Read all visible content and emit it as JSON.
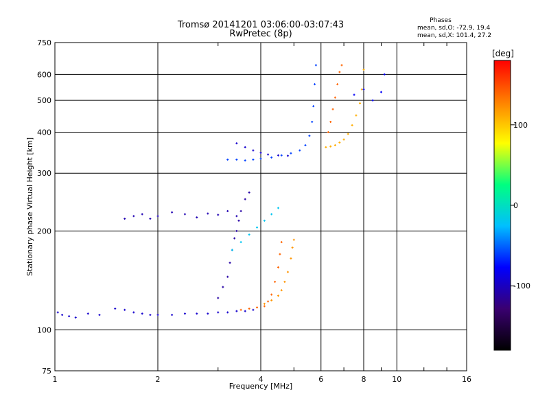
{
  "chart_data": {
    "type": "scatter",
    "title": "Tromsø 20141201 03:06:00-03:07:43",
    "subtitle": "RwPretec (8p)",
    "xlabel": "Frequency [MHz]",
    "ylabel": "Stationary phase Virtual Height [km]",
    "x_scale": "log",
    "y_scale": "log",
    "xlim": [
      1,
      16
    ],
    "ylim": [
      75,
      750
    ],
    "x_ticks": [
      1,
      2,
      4,
      6,
      8,
      10,
      16
    ],
    "x_tick_labels": [
      "1",
      "2",
      "4",
      "6",
      "8",
      "10",
      "16"
    ],
    "y_ticks": [
      75,
      100,
      200,
      300,
      400,
      500,
      600,
      750
    ],
    "y_tick_labels": [
      "75",
      "100",
      "200",
      "300",
      "400",
      "500",
      "600",
      "750"
    ],
    "grid": true,
    "colorbar": {
      "label": "[deg]",
      "range": [
        -180,
        180
      ],
      "ticks": [
        100,
        0,
        -100
      ],
      "tick_labels": [
        "100",
        "0",
        "-100"
      ],
      "colormap": [
        "#000000",
        "#3a0070",
        "#0000ff",
        "#00bfff",
        "#00ff80",
        "#ffff00",
        "#ff8000",
        "#ff0000"
      ]
    },
    "phases_box": {
      "heading": "Phases",
      "line1": "mean, sd,O: -72.9, 19.4",
      "line2": "mean, sd,X: 101.4, 27.2"
    },
    "traces": [
      {
        "x": [
          1.02,
          1.05,
          1.1,
          1.15,
          1.25,
          1.35,
          1.5,
          1.6,
          1.7,
          1.8,
          1.9,
          2.0,
          2.2,
          2.4,
          2.6,
          2.8,
          3.0,
          3.2,
          3.4,
          3.6,
          3.8
        ],
        "y": [
          113,
          111,
          110,
          109,
          112,
          111,
          116,
          115,
          113,
          112,
          111,
          111,
          111,
          112,
          112,
          112,
          113,
          113,
          114,
          114,
          115
        ],
        "phase": -95
      },
      {
        "x": [
          3.0,
          3.1,
          3.2,
          3.25,
          3.3,
          3.35,
          3.4,
          3.45,
          3.5,
          3.6,
          3.7
        ],
        "y": [
          125,
          135,
          145,
          160,
          175,
          190,
          200,
          215,
          230,
          250,
          262
        ],
        "phase": -110
      },
      {
        "x": [
          1.6,
          1.7,
          1.8,
          1.9,
          2.0,
          2.2,
          2.4,
          2.6,
          2.8,
          3.0,
          3.2,
          3.4
        ],
        "y": [
          218,
          222,
          225,
          218,
          222,
          228,
          225,
          220,
          226,
          224,
          230,
          222
        ],
        "phase": -105
      },
      {
        "x": [
          3.5,
          3.7,
          3.9,
          4.1,
          4.2,
          4.3,
          4.4,
          4.5,
          4.55,
          4.6
        ],
        "y": [
          115,
          116,
          117,
          118,
          122,
          128,
          140,
          155,
          170,
          185
        ],
        "phase": 140
      },
      {
        "x": [
          4.1,
          4.3,
          4.5,
          4.6,
          4.7,
          4.8,
          4.9,
          4.95,
          5.0
        ],
        "y": [
          120,
          123,
          127,
          132,
          140,
          150,
          165,
          178,
          188
        ],
        "phase": 120
      },
      {
        "x": [
          3.3,
          3.5,
          3.7,
          3.9,
          4.1,
          4.3,
          4.5
        ],
        "y": [
          175,
          185,
          195,
          205,
          215,
          225,
          235
        ],
        "phase": -20
      },
      {
        "x": [
          3.2,
          3.4,
          3.6,
          3.8,
          4.0,
          4.3,
          4.6,
          4.9,
          5.2,
          5.4,
          5.55,
          5.65,
          5.7,
          5.75,
          5.8
        ],
        "y": [
          330,
          330,
          328,
          330,
          332,
          335,
          340,
          345,
          352,
          365,
          390,
          430,
          480,
          560,
          640
        ],
        "phase": -60
      },
      {
        "x": [
          3.4,
          3.6,
          3.8,
          4.0,
          4.2,
          4.5,
          4.8
        ],
        "y": [
          370,
          360,
          352,
          346,
          342,
          340,
          339
        ],
        "phase": -95
      },
      {
        "x": [
          6.2,
          6.4,
          6.6,
          6.8,
          7.0,
          7.2,
          7.4,
          7.6,
          7.8,
          7.9,
          8.0
        ],
        "y": [
          360,
          362,
          365,
          372,
          380,
          395,
          420,
          450,
          490,
          540,
          620
        ],
        "phase": 110
      },
      {
        "x": [
          6.3,
          6.4,
          6.5,
          6.6,
          6.7,
          6.8,
          6.9
        ],
        "y": [
          400,
          430,
          470,
          510,
          560,
          610,
          640
        ],
        "phase": 140
      },
      {
        "x": [
          7.5,
          8.0,
          8.5,
          9.0,
          9.2
        ],
        "y": [
          520,
          540,
          500,
          530,
          600
        ],
        "phase": -80
      }
    ]
  }
}
